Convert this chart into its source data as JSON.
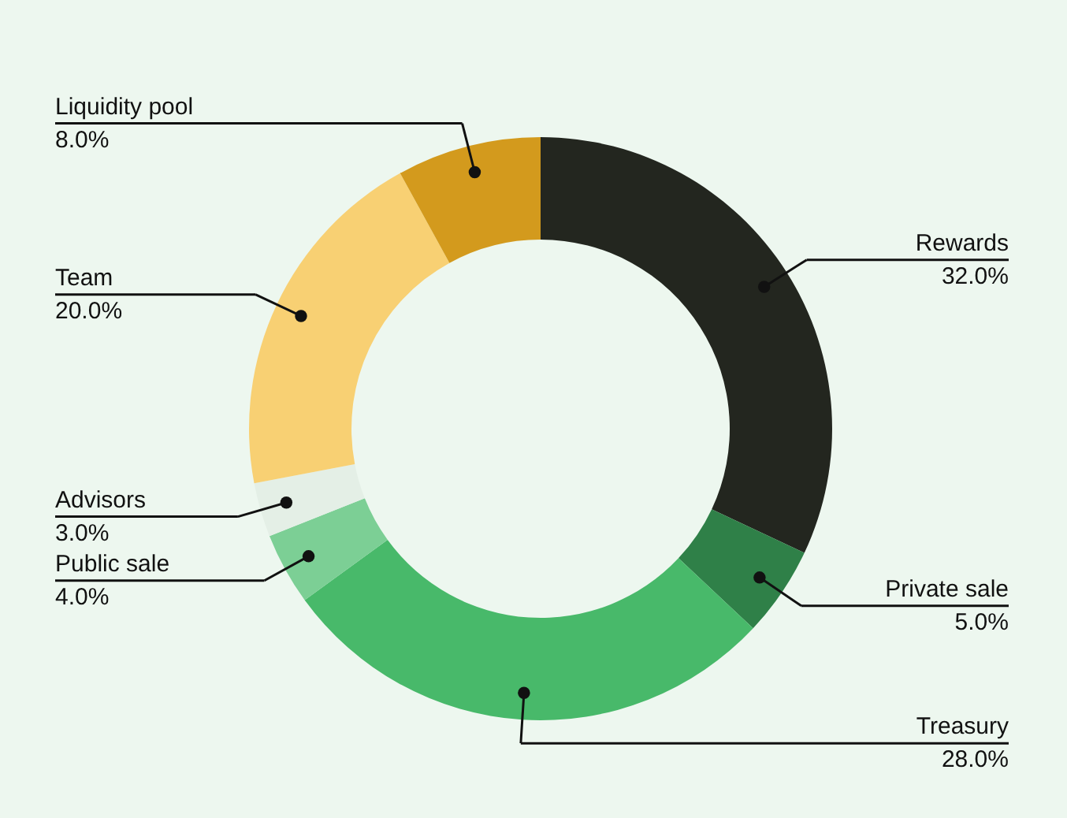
{
  "chart_data": {
    "type": "donut",
    "categories": [
      "Rewards",
      "Private sale",
      "Treasury",
      "Public sale",
      "Advisors",
      "Team",
      "Liquidity pool"
    ],
    "values": [
      32,
      5,
      28,
      4,
      3,
      20,
      8
    ],
    "colors": [
      "#23261f",
      "#2f8048",
      "#48b96a",
      "#7ccf95",
      "#e4efe6",
      "#f8d073",
      "#d39a1d"
    ],
    "value_labels": [
      "32.0%",
      "5.0%",
      "28.0%",
      "4.0%",
      "3.0%",
      "20.0%",
      "8.0%"
    ]
  }
}
